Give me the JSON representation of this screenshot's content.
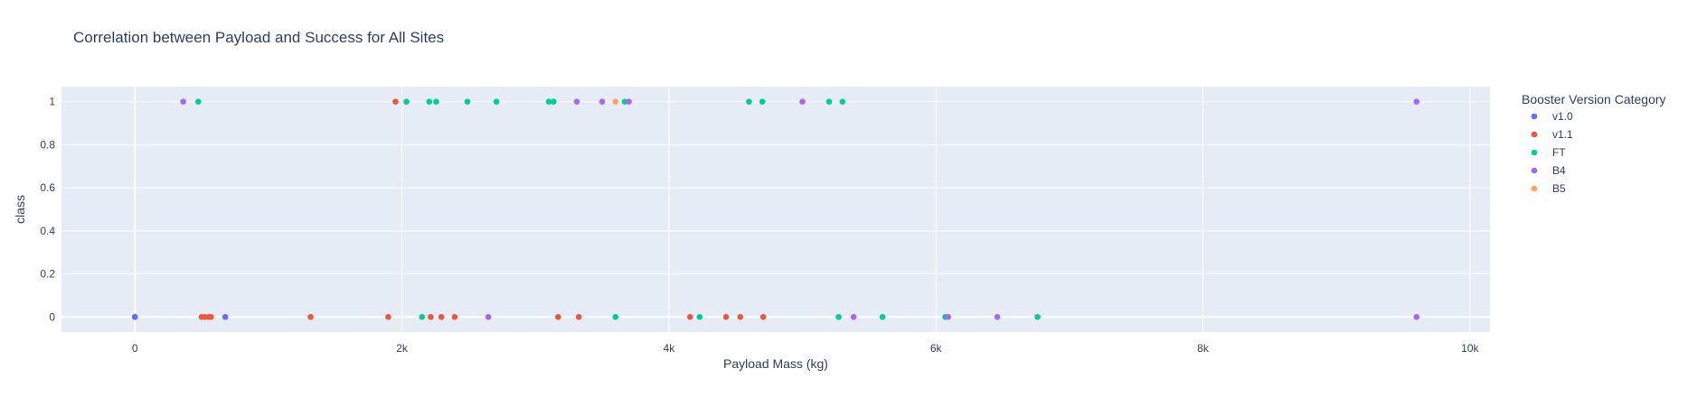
{
  "chart_data": {
    "type": "scatter",
    "title": "Correlation between Payload and Success for All Sites",
    "xlabel": "Payload Mass (kg)",
    "ylabel": "class",
    "xlim": [
      -550,
      10150
    ],
    "ylim": [
      -0.07,
      1.07
    ],
    "x_ticks": [
      0,
      2000,
      4000,
      6000,
      8000,
      10000
    ],
    "x_tick_labels": [
      "0",
      "2k",
      "4k",
      "6k",
      "8k",
      "10k"
    ],
    "y_ticks": [
      0,
      0.2,
      0.4,
      0.6,
      0.8,
      1
    ],
    "y_tick_labels": [
      "0",
      "0.2",
      "0.4",
      "0.6",
      "0.8",
      "1"
    ],
    "grid": true,
    "legend": {
      "title": "Booster Version Category",
      "position": "right"
    },
    "series": [
      {
        "name": "v1.0",
        "color": "#636efa",
        "points": [
          [
            0,
            0
          ],
          [
            0,
            0
          ],
          [
            677,
            0
          ]
        ]
      },
      {
        "name": "v1.1",
        "color": "#ef553b",
        "points": [
          [
            500,
            0
          ],
          [
            525,
            0
          ],
          [
            553,
            0
          ],
          [
            570,
            0
          ],
          [
            1316,
            0
          ],
          [
            1898,
            0
          ],
          [
            1952,
            1
          ],
          [
            2216,
            0
          ],
          [
            2296,
            0
          ],
          [
            2395,
            0
          ],
          [
            3170,
            0
          ],
          [
            3325,
            0
          ],
          [
            4159,
            0
          ],
          [
            4428,
            0
          ],
          [
            4535,
            0
          ],
          [
            4707,
            0
          ]
        ]
      },
      {
        "name": "FT",
        "color": "#00cc96",
        "points": [
          [
            475,
            1
          ],
          [
            2034,
            1
          ],
          [
            2150,
            0
          ],
          [
            2205,
            1
          ],
          [
            2257,
            1
          ],
          [
            2490,
            1
          ],
          [
            2708,
            1
          ],
          [
            3100,
            1
          ],
          [
            3136,
            1
          ],
          [
            3600,
            0
          ],
          [
            3669,
            1
          ],
          [
            4230,
            0
          ],
          [
            4600,
            1
          ],
          [
            4700,
            1
          ],
          [
            5200,
            1
          ],
          [
            5271,
            0
          ],
          [
            5300,
            1
          ],
          [
            5600,
            0
          ],
          [
            6070,
            0
          ],
          [
            6761,
            0
          ]
        ]
      },
      {
        "name": "B4",
        "color": "#ab63fa",
        "points": [
          [
            362,
            1
          ],
          [
            2647,
            0
          ],
          [
            3310,
            1
          ],
          [
            3500,
            1
          ],
          [
            3700,
            1
          ],
          [
            5000,
            1
          ],
          [
            5384,
            0
          ],
          [
            6092,
            0
          ],
          [
            6460,
            0
          ],
          [
            9600,
            1
          ],
          [
            9600,
            0
          ]
        ]
      },
      {
        "name": "B5",
        "color": "#ffa15a",
        "points": [
          [
            3600,
            1
          ]
        ]
      }
    ]
  }
}
